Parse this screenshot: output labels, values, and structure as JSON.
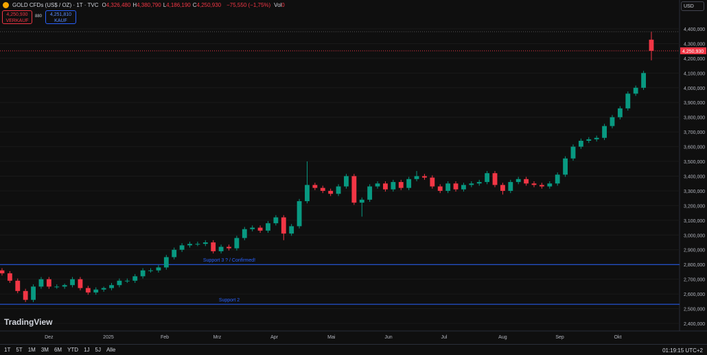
{
  "header": {
    "symbol": "GOLD CFDs (US$ / OZ) · 1T · TVC",
    "ohlc": [
      {
        "key": "O",
        "value": "4,326,480"
      },
      {
        "key": "H",
        "value": "4,380,790"
      },
      {
        "key": "L",
        "value": "4,186,190"
      },
      {
        "key": "C",
        "value": "4,250,930"
      }
    ],
    "change": "−75,550 (−1,75%)",
    "volume_key": "Vol",
    "volume": "0"
  },
  "trade": {
    "sell_price": "4,250,930",
    "sell_label": "VERKAUF",
    "spread": "880",
    "buy_price": "4,251,810",
    "buy_label": "KAUF"
  },
  "currency": "USD",
  "logo": "TradingView",
  "toolbar": {
    "ranges": [
      "1T",
      "5T",
      "1M",
      "3M",
      "6M",
      "YTD",
      "1J",
      "5J",
      "Alle"
    ],
    "time": "01:19:15 UTC+2"
  },
  "chart_data": {
    "type": "candlestick",
    "up_color": "#089981",
    "down_color": "#f23645",
    "open": [
      2760000,
      2740000,
      2690000,
      2620000,
      2560000,
      2650000,
      2700000,
      2650000,
      2650000,
      2660000,
      2700000,
      2640000,
      2610000,
      2630000,
      2640000,
      2660000,
      2690000,
      2690000,
      2720000,
      2760000,
      2760000,
      2780000,
      2850000,
      2900000,
      2930000,
      2940000,
      2940000,
      2950000,
      2890000,
      2920000,
      2910000,
      2980000,
      3040000,
      3050000,
      3030000,
      3080000,
      3120000,
      3010000,
      3060000,
      3230000,
      3340000,
      3320000,
      3300000,
      3280000,
      3330000,
      3400000,
      3220000,
      3240000,
      3330000,
      3350000,
      3310000,
      3360000,
      3320000,
      3380000,
      3400000,
      3390000,
      3330000,
      3300000,
      3350000,
      3310000,
      3340000,
      3350000,
      3360000,
      3420000,
      3340000,
      3300000,
      3360000,
      3380000,
      3350000,
      3340000,
      3330000,
      3350000,
      3410000,
      3520000,
      3600000,
      3640000,
      3650000,
      3660000,
      3740000,
      3800000,
      3860000,
      3960000,
      4000000,
      4326480
    ],
    "high": [
      2775000,
      2755000,
      2705000,
      2635000,
      2665000,
      2715000,
      2715000,
      2665000,
      2670000,
      2715000,
      2715000,
      2655000,
      2645000,
      2650000,
      2675000,
      2705000,
      2705000,
      2735000,
      2775000,
      2775000,
      2795000,
      2865000,
      2915000,
      2945000,
      2955000,
      2955000,
      2965000,
      2965000,
      2935000,
      2935000,
      2995000,
      3055000,
      3065000,
      3065000,
      3095000,
      3135000,
      3135000,
      3075000,
      3245000,
      3500000,
      3355000,
      3335000,
      3315000,
      3345000,
      3415000,
      3415000,
      3255000,
      3345000,
      3365000,
      3365000,
      3375000,
      3375000,
      3395000,
      3435000,
      3415000,
      3405000,
      3345000,
      3365000,
      3365000,
      3355000,
      3365000,
      3375000,
      3435000,
      3435000,
      3355000,
      3375000,
      3395000,
      3395000,
      3365000,
      3355000,
      3365000,
      3425000,
      3535000,
      3615000,
      3655000,
      3665000,
      3675000,
      3755000,
      3815000,
      3875000,
      3975000,
      4015000,
      4115000,
      4380790
    ],
    "low": [
      2725000,
      2675000,
      2605000,
      2545000,
      2545000,
      2635000,
      2635000,
      2635000,
      2635000,
      2645000,
      2625000,
      2595000,
      2595000,
      2615000,
      2625000,
      2645000,
      2675000,
      2675000,
      2705000,
      2745000,
      2745000,
      2765000,
      2835000,
      2885000,
      2915000,
      2925000,
      2925000,
      2875000,
      2875000,
      2895000,
      2895000,
      2965000,
      3025000,
      3015000,
      3015000,
      3065000,
      2965000,
      2995000,
      3045000,
      3215000,
      3305000,
      3285000,
      3265000,
      3265000,
      3315000,
      3205000,
      3125000,
      3225000,
      3315000,
      3295000,
      3295000,
      3305000,
      3305000,
      3365000,
      3375000,
      3315000,
      3285000,
      3285000,
      3295000,
      3295000,
      3325000,
      3335000,
      3345000,
      3325000,
      3275000,
      3285000,
      3345000,
      3335000,
      3325000,
      3315000,
      3315000,
      3335000,
      3395000,
      3505000,
      3585000,
      3625000,
      3635000,
      3645000,
      3725000,
      3785000,
      3845000,
      3945000,
      3985000,
      4186190
    ],
    "close": [
      2740000,
      2690000,
      2620000,
      2560000,
      2650000,
      2700000,
      2650000,
      2650000,
      2660000,
      2700000,
      2640000,
      2610000,
      2630000,
      2640000,
      2660000,
      2690000,
      2690000,
      2720000,
      2760000,
      2760000,
      2780000,
      2850000,
      2900000,
      2930000,
      2940000,
      2940000,
      2950000,
      2890000,
      2920000,
      2910000,
      2980000,
      3040000,
      3050000,
      3030000,
      3080000,
      3120000,
      3010000,
      3060000,
      3230000,
      3340000,
      3320000,
      3300000,
      3280000,
      3330000,
      3400000,
      3220000,
      3240000,
      3330000,
      3350000,
      3310000,
      3360000,
      3320000,
      3380000,
      3400000,
      3390000,
      3330000,
      3300000,
      3350000,
      3310000,
      3340000,
      3350000,
      3360000,
      3420000,
      3340000,
      3300000,
      3360000,
      3380000,
      3350000,
      3340000,
      3330000,
      3350000,
      3410000,
      3520000,
      3600000,
      3640000,
      3650000,
      3660000,
      3740000,
      3800000,
      3860000,
      3960000,
      4000000,
      4100000,
      4250930
    ],
    "xlim": [
      -0.26,
      86.6
    ],
    "xticks": [
      {
        "value": 6,
        "label": "Dez"
      },
      {
        "value": 13.6,
        "label": "2025"
      },
      {
        "value": 20.8,
        "label": "Feb"
      },
      {
        "value": 27.5,
        "label": "Mrz"
      },
      {
        "value": 34.8,
        "label": "Apr"
      },
      {
        "value": 42.1,
        "label": "Mai"
      },
      {
        "value": 49.4,
        "label": "Jun"
      },
      {
        "value": 56.5,
        "label": "Jul"
      },
      {
        "value": 64,
        "label": "Aug"
      },
      {
        "value": 71.3,
        "label": "Sep"
      },
      {
        "value": 78.7,
        "label": "Okt"
      }
    ],
    "ylim": [
      2348700,
      4595800
    ],
    "yticks": [
      {
        "value": 2400000,
        "label": "2,400,000"
      },
      {
        "value": 2500000,
        "label": "2,500,000"
      },
      {
        "value": 2600000,
        "label": "2,600,000"
      },
      {
        "value": 2700000,
        "label": "2,700,000"
      },
      {
        "value": 2800000,
        "label": "2,800,000"
      },
      {
        "value": 2900000,
        "label": "2,900,000"
      },
      {
        "value": 3000000,
        "label": "3,000,000"
      },
      {
        "value": 3100000,
        "label": "3,100,000"
      },
      {
        "value": 3200000,
        "label": "3,200,000"
      },
      {
        "value": 3300000,
        "label": "3,300,000"
      },
      {
        "value": 3400000,
        "label": "3,400,000"
      },
      {
        "value": 3500000,
        "label": "3,500,000"
      },
      {
        "value": 3600000,
        "label": "3,600,000"
      },
      {
        "value": 3700000,
        "label": "3,700,000"
      },
      {
        "value": 3800000,
        "label": "3,800,000"
      },
      {
        "value": 3900000,
        "label": "3,900,000"
      },
      {
        "value": 4000000,
        "label": "4,000,000"
      },
      {
        "value": 4100000,
        "label": "4,100,000"
      },
      {
        "value": 4200000,
        "label": "4,200,000"
      },
      {
        "value": 4300000,
        "label": "4,300,000"
      },
      {
        "value": 4400000,
        "label": "4,400,000"
      }
    ],
    "hlines": [
      {
        "value": 2800000,
        "label": "Support 3 ? / Confirmed!",
        "color": "#2962ff"
      },
      {
        "value": 2530000,
        "label": "Support 2",
        "color": "#2962ff"
      }
    ],
    "last_price": {
      "value": 4250930,
      "label": "4,250,930"
    }
  }
}
